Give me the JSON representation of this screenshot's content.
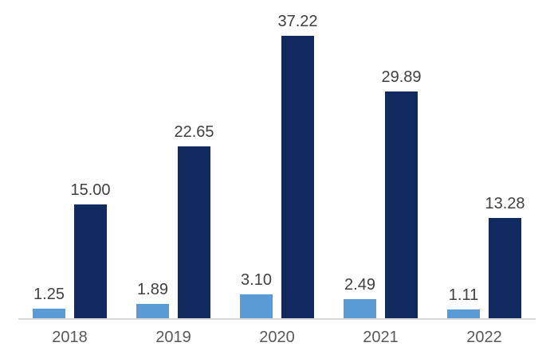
{
  "chart_data": {
    "type": "bar",
    "title": "",
    "xlabel": "",
    "ylabel": "",
    "categories": [
      "2018",
      "2019",
      "2020",
      "2021",
      "2022"
    ],
    "series": [
      {
        "name": "series-light-blue",
        "color": "#5b9bd5",
        "values": [
          1.25,
          1.89,
          3.1,
          2.49,
          1.11
        ],
        "labels": [
          "1.25",
          "1.89",
          "3.10",
          "2.49",
          "1.11"
        ]
      },
      {
        "name": "series-dark-navy",
        "color": "#102a5f",
        "values": [
          15.0,
          22.65,
          37.22,
          29.89,
          13.28
        ],
        "labels": [
          "15.00",
          "22.65",
          "37.22",
          "29.89",
          "13.28"
        ]
      }
    ],
    "ylim": [
      0,
      40
    ],
    "grid": false,
    "legend": false,
    "data_labels": true,
    "y_axis_visible": false,
    "axis_line_color": "#d9d9d9",
    "value_label_color": "#404040",
    "tick_label_color": "#595959",
    "background": "#ffffff"
  }
}
